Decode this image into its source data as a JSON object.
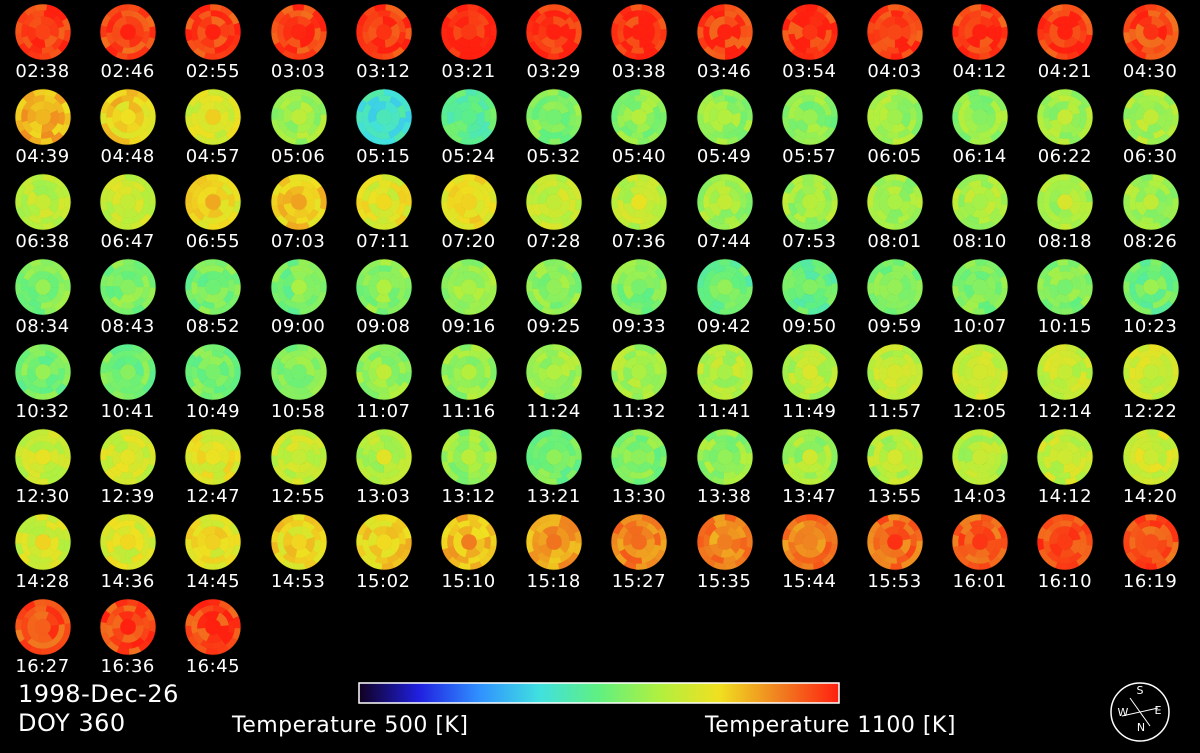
{
  "date_label": "1998-Dec-26",
  "doy_label": "DOY 360",
  "colorbar": {
    "min_label": "Temperature 500 [K]",
    "max_label": "Temperature 1100 [K]",
    "min_value": 500,
    "max_value 1100": null,
    "max_value": 1100,
    "stops": [
      "#100020",
      "#2020e0",
      "#3090ff",
      "#40e0e0",
      "#60f080",
      "#b0f040",
      "#f0e020",
      "#f08020",
      "#ff2010"
    ]
  },
  "compass": {
    "top": "S",
    "left": "W",
    "right": "E",
    "bottom": "N"
  },
  "chart_data": {
    "type": "heatmap",
    "grid": {
      "columns": 14
    },
    "unit": "K",
    "frames": [
      {
        "time": "02:38",
        "mean_temp_k": 1080
      },
      {
        "time": "02:46",
        "mean_temp_k": 1070
      },
      {
        "time": "02:55",
        "mean_temp_k": 1070
      },
      {
        "time": "03:03",
        "mean_temp_k": 1075
      },
      {
        "time": "03:12",
        "mean_temp_k": 1080
      },
      {
        "time": "03:21",
        "mean_temp_k": 1090
      },
      {
        "time": "03:29",
        "mean_temp_k": 1090
      },
      {
        "time": "03:38",
        "mean_temp_k": 1085
      },
      {
        "time": "03:46",
        "mean_temp_k": 1080
      },
      {
        "time": "03:54",
        "mean_temp_k": 1080
      },
      {
        "time": "04:03",
        "mean_temp_k": 1080
      },
      {
        "time": "04:12",
        "mean_temp_k": 1075
      },
      {
        "time": "04:21",
        "mean_temp_k": 1080
      },
      {
        "time": "04:30",
        "mean_temp_k": 1070
      },
      {
        "time": "04:39",
        "mean_temp_k": 980
      },
      {
        "time": "04:48",
        "mean_temp_k": 960
      },
      {
        "time": "04:57",
        "mean_temp_k": 920
      },
      {
        "time": "05:06",
        "mean_temp_k": 860
      },
      {
        "time": "05:15",
        "mean_temp_k": 740
      },
      {
        "time": "05:24",
        "mean_temp_k": 790
      },
      {
        "time": "05:32",
        "mean_temp_k": 830
      },
      {
        "time": "05:40",
        "mean_temp_k": 840
      },
      {
        "time": "05:49",
        "mean_temp_k": 850
      },
      {
        "time": "05:57",
        "mean_temp_k": 840
      },
      {
        "time": "06:05",
        "mean_temp_k": 860
      },
      {
        "time": "06:14",
        "mean_temp_k": 850
      },
      {
        "time": "06:22",
        "mean_temp_k": 860
      },
      {
        "time": "06:30",
        "mean_temp_k": 870
      },
      {
        "time": "06:38",
        "mean_temp_k": 890
      },
      {
        "time": "06:47",
        "mean_temp_k": 900
      },
      {
        "time": "06:55",
        "mean_temp_k": 940
      },
      {
        "time": "07:03",
        "mean_temp_k": 960
      },
      {
        "time": "07:11",
        "mean_temp_k": 930
      },
      {
        "time": "07:20",
        "mean_temp_k": 950
      },
      {
        "time": "07:28",
        "mean_temp_k": 900
      },
      {
        "time": "07:36",
        "mean_temp_k": 890
      },
      {
        "time": "07:44",
        "mean_temp_k": 860
      },
      {
        "time": "07:53",
        "mean_temp_k": 860
      },
      {
        "time": "08:01",
        "mean_temp_k": 860
      },
      {
        "time": "08:10",
        "mean_temp_k": 870
      },
      {
        "time": "08:18",
        "mean_temp_k": 870
      },
      {
        "time": "08:26",
        "mean_temp_k": 860
      },
      {
        "time": "08:34",
        "mean_temp_k": 830
      },
      {
        "time": "08:43",
        "mean_temp_k": 830
      },
      {
        "time": "08:52",
        "mean_temp_k": 820
      },
      {
        "time": "09:00",
        "mean_temp_k": 820
      },
      {
        "time": "09:08",
        "mean_temp_k": 840
      },
      {
        "time": "09:16",
        "mean_temp_k": 850
      },
      {
        "time": "09:25",
        "mean_temp_k": 840
      },
      {
        "time": "09:33",
        "mean_temp_k": 830
      },
      {
        "time": "09:42",
        "mean_temp_k": 800
      },
      {
        "time": "09:50",
        "mean_temp_k": 800
      },
      {
        "time": "09:59",
        "mean_temp_k": 830
      },
      {
        "time": "10:07",
        "mean_temp_k": 830
      },
      {
        "time": "10:15",
        "mean_temp_k": 830
      },
      {
        "time": "10:23",
        "mean_temp_k": 810
      },
      {
        "time": "10:32",
        "mean_temp_k": 820
      },
      {
        "time": "10:41",
        "mean_temp_k": 820
      },
      {
        "time": "10:49",
        "mean_temp_k": 820
      },
      {
        "time": "10:58",
        "mean_temp_k": 830
      },
      {
        "time": "11:07",
        "mean_temp_k": 850
      },
      {
        "time": "11:16",
        "mean_temp_k": 850
      },
      {
        "time": "11:24",
        "mean_temp_k": 860
      },
      {
        "time": "11:32",
        "mean_temp_k": 870
      },
      {
        "time": "11:41",
        "mean_temp_k": 880
      },
      {
        "time": "11:49",
        "mean_temp_k": 880
      },
      {
        "time": "11:57",
        "mean_temp_k": 890
      },
      {
        "time": "12:05",
        "mean_temp_k": 900
      },
      {
        "time": "12:14",
        "mean_temp_k": 900
      },
      {
        "time": "12:22",
        "mean_temp_k": 910
      },
      {
        "time": "12:30",
        "mean_temp_k": 900
      },
      {
        "time": "12:39",
        "mean_temp_k": 910
      },
      {
        "time": "12:47",
        "mean_temp_k": 930
      },
      {
        "time": "12:55",
        "mean_temp_k": 900
      },
      {
        "time": "13:03",
        "mean_temp_k": 880
      },
      {
        "time": "13:12",
        "mean_temp_k": 850
      },
      {
        "time": "13:21",
        "mean_temp_k": 820
      },
      {
        "time": "13:30",
        "mean_temp_k": 830
      },
      {
        "time": "13:38",
        "mean_temp_k": 850
      },
      {
        "time": "13:47",
        "mean_temp_k": 860
      },
      {
        "time": "13:55",
        "mean_temp_k": 880
      },
      {
        "time": "14:03",
        "mean_temp_k": 880
      },
      {
        "time": "14:12",
        "mean_temp_k": 900
      },
      {
        "time": "14:20",
        "mean_temp_k": 910
      },
      {
        "time": "14:28",
        "mean_temp_k": 910
      },
      {
        "time": "14:36",
        "mean_temp_k": 920
      },
      {
        "time": "14:45",
        "mean_temp_k": 940
      },
      {
        "time": "14:53",
        "mean_temp_k": 950
      },
      {
        "time": "15:02",
        "mean_temp_k": 960
      },
      {
        "time": "15:10",
        "mean_temp_k": 980
      },
      {
        "time": "15:18",
        "mean_temp_k": 1000
      },
      {
        "time": "15:27",
        "mean_temp_k": 1020
      },
      {
        "time": "15:35",
        "mean_temp_k": 1020
      },
      {
        "time": "15:44",
        "mean_temp_k": 1030
      },
      {
        "time": "15:53",
        "mean_temp_k": 1040
      },
      {
        "time": "16:01",
        "mean_temp_k": 1050
      },
      {
        "time": "16:10",
        "mean_temp_k": 1060
      },
      {
        "time": "16:19",
        "mean_temp_k": 1060
      },
      {
        "time": "16:27",
        "mean_temp_k": 1060
      },
      {
        "time": "16:36",
        "mean_temp_k": 1070
      },
      {
        "time": "16:45",
        "mean_temp_k": 1070
      }
    ]
  }
}
